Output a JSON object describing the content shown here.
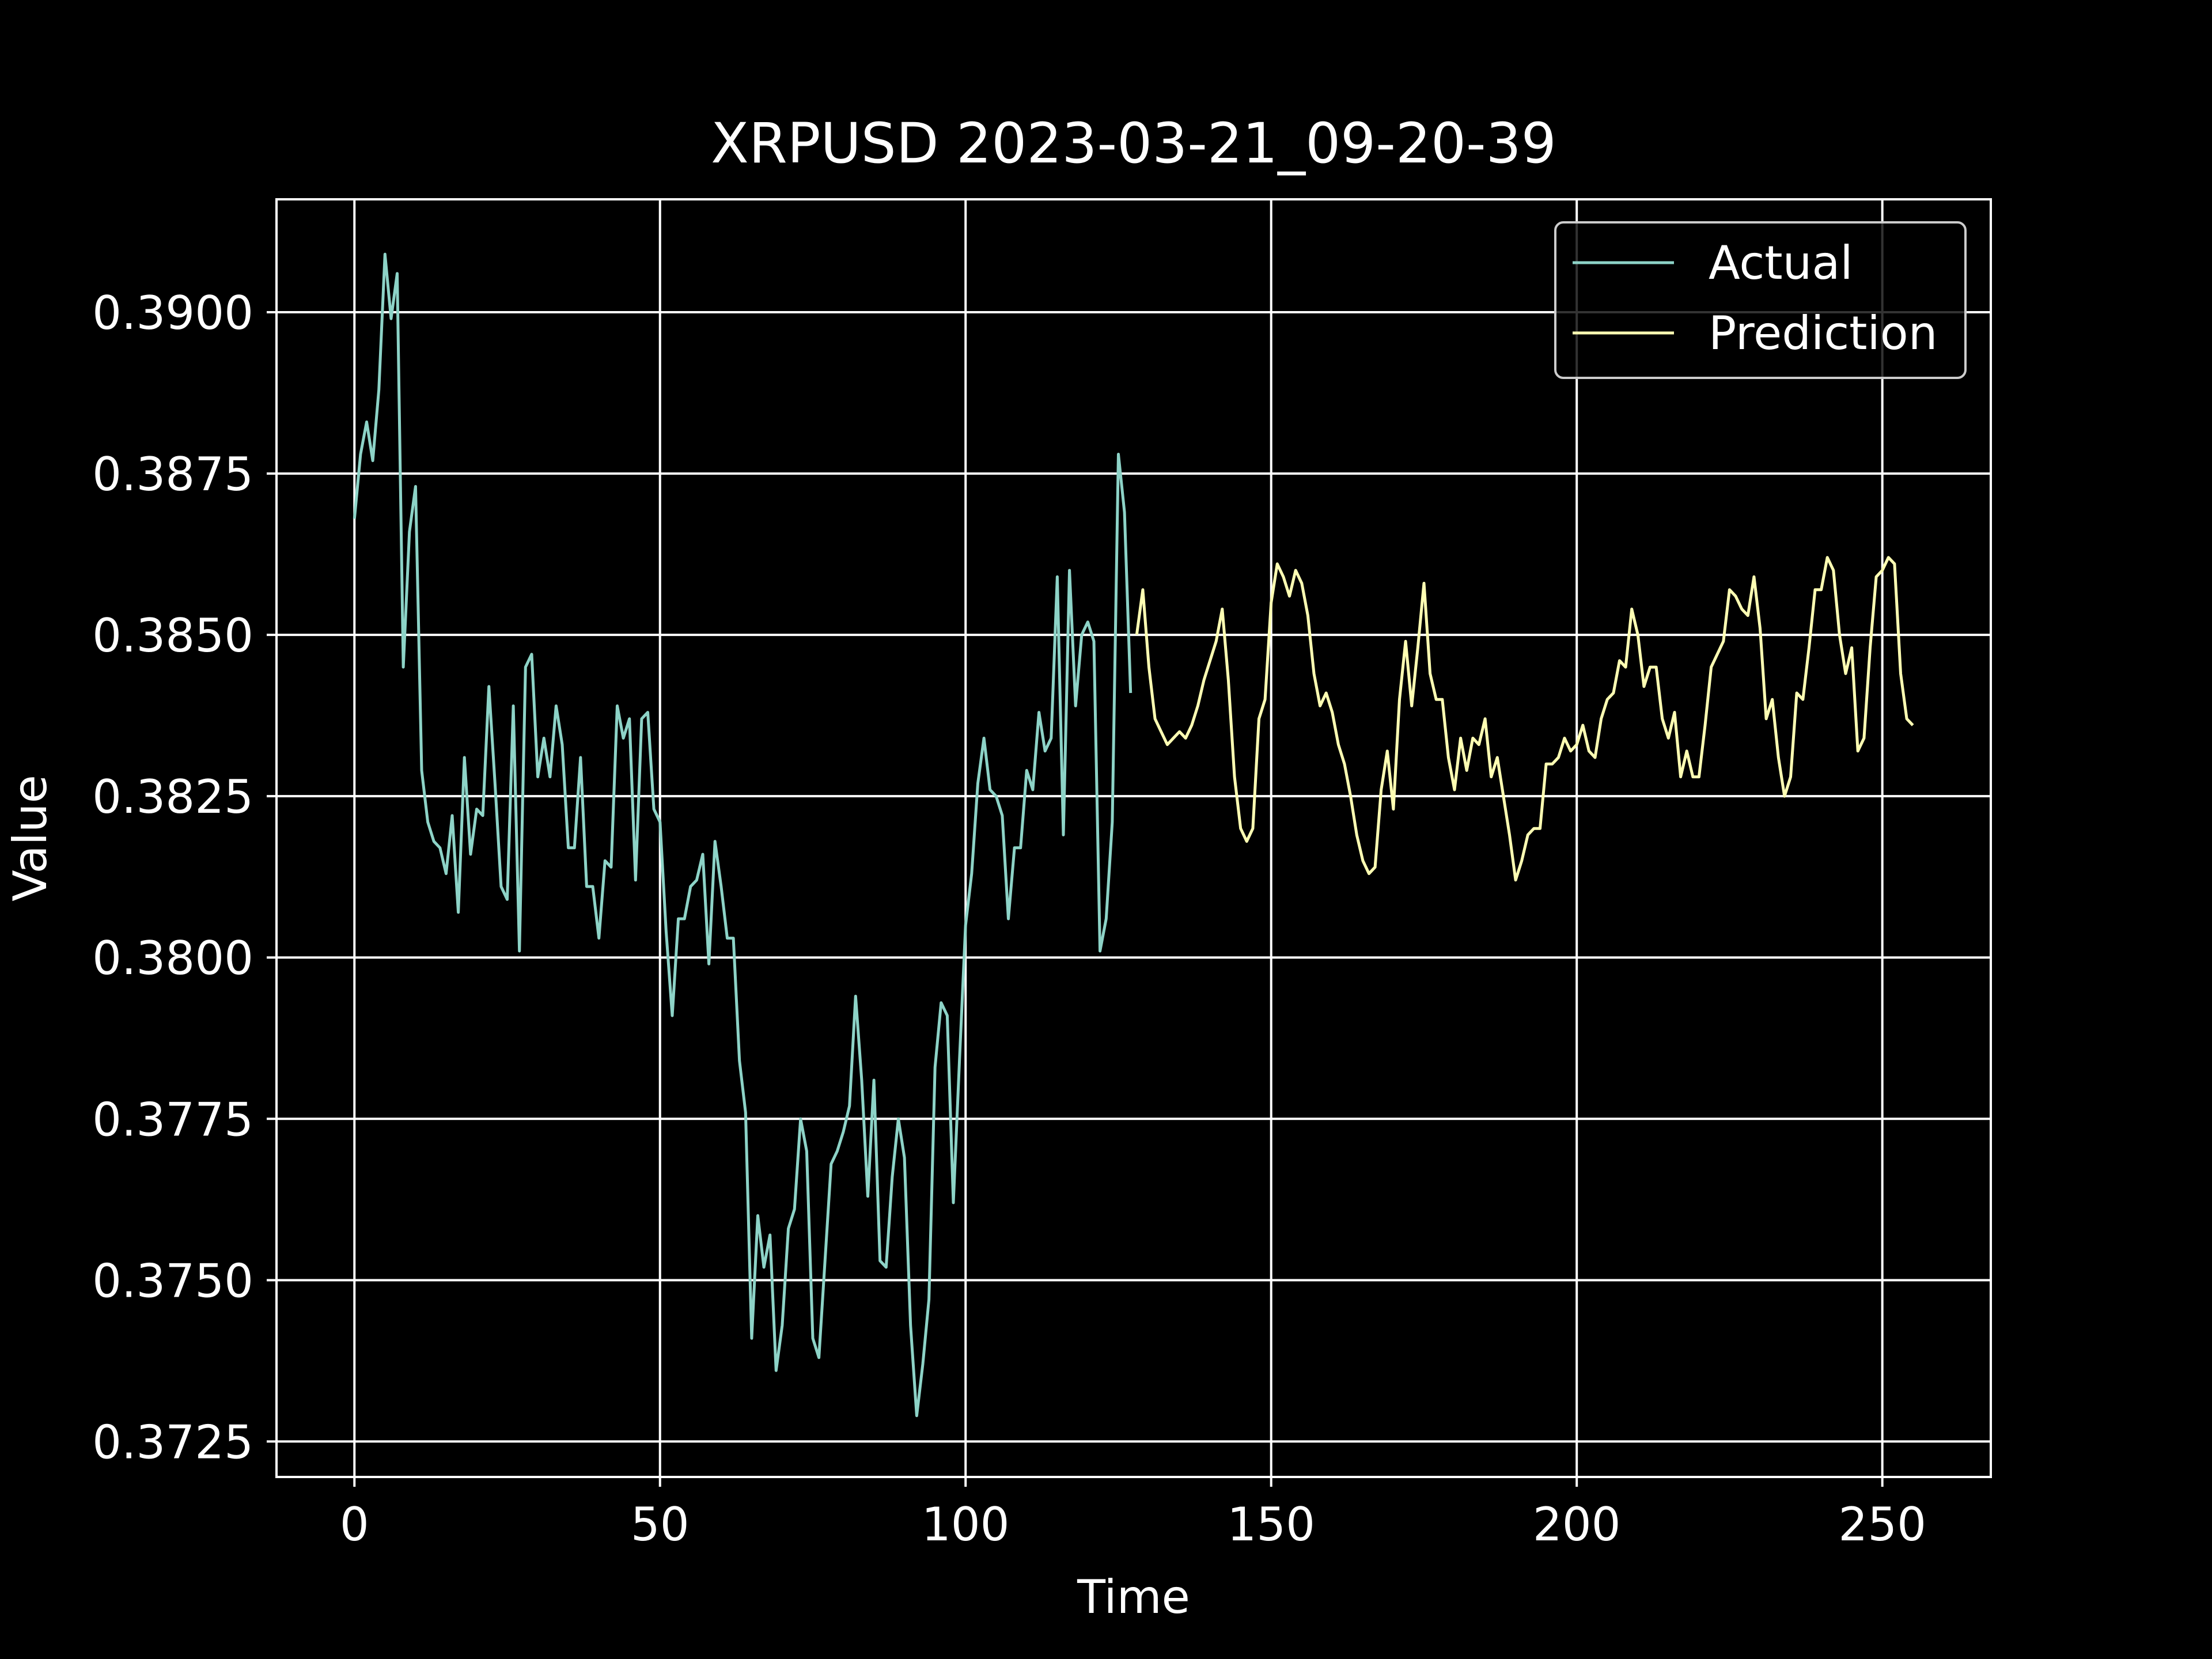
{
  "chart_data": {
    "type": "line",
    "title": "XRPUSD 2023-03-21_09-20-39",
    "xlabel": "Time",
    "ylabel": "Value",
    "xlim": [
      -12.75,
      267.75
    ],
    "ylim": [
      0.37195,
      0.39175
    ],
    "x_ticks": [
      0,
      50,
      100,
      150,
      200,
      250
    ],
    "y_ticks": [
      0.3725,
      0.375,
      0.3775,
      0.38,
      0.3825,
      0.385,
      0.3875,
      0.39
    ],
    "y_tick_decimals": 4,
    "grid": true,
    "legend_position": "top-right",
    "series": [
      {
        "name": "Actual",
        "color": "#8dd3c7",
        "x_start": 0,
        "values": [
          0.3868,
          0.3878,
          0.3883,
          0.3877,
          0.3888,
          0.3909,
          0.3899,
          0.3906,
          0.3845,
          0.3866,
          0.3873,
          0.3829,
          0.3821,
          0.3818,
          0.3817,
          0.3813,
          0.3822,
          0.3807,
          0.3831,
          0.3816,
          0.3823,
          0.3822,
          0.3842,
          0.3827,
          0.3811,
          0.3809,
          0.3839,
          0.3801,
          0.3845,
          0.3847,
          0.3828,
          0.3834,
          0.3828,
          0.3839,
          0.3833,
          0.3817,
          0.3817,
          0.3831,
          0.3811,
          0.3811,
          0.3803,
          0.3815,
          0.3814,
          0.3839,
          0.3834,
          0.3837,
          0.3812,
          0.3837,
          0.3838,
          0.3823,
          0.3821,
          0.3804,
          0.3791,
          0.3806,
          0.3806,
          0.3811,
          0.3812,
          0.3816,
          0.3799,
          0.3818,
          0.3811,
          0.3803,
          0.3803,
          0.3784,
          0.3776,
          0.3741,
          0.376,
          0.3752,
          0.3757,
          0.3736,
          0.3743,
          0.3758,
          0.3761,
          0.3775,
          0.377,
          0.3741,
          0.3738,
          0.3753,
          0.3768,
          0.377,
          0.3773,
          0.3777,
          0.3794,
          0.3781,
          0.3763,
          0.3781,
          0.3753,
          0.3752,
          0.3766,
          0.3775,
          0.3769,
          0.3743,
          0.3729,
          0.3737,
          0.3747,
          0.3783,
          0.3793,
          0.3791,
          0.3762,
          0.3784,
          0.3805,
          0.3813,
          0.3827,
          0.3834,
          0.3826,
          0.3825,
          0.3822,
          0.3806,
          0.3817,
          0.3817,
          0.3829,
          0.3826,
          0.3838,
          0.3832,
          0.3834,
          0.3859,
          0.3819,
          0.386,
          0.3839,
          0.385,
          0.3852,
          0.3849,
          0.3801,
          0.3806,
          0.3821,
          0.3878,
          0.3869,
          0.3841
        ]
      },
      {
        "name": "Prediction",
        "color": "#ffffb3",
        "x_start": 128,
        "values": [
          0.385,
          0.3857,
          0.3845,
          0.3837,
          0.3835,
          0.3833,
          0.3834,
          0.3835,
          0.3834,
          0.3836,
          0.3839,
          0.3843,
          0.3846,
          0.3849,
          0.3854,
          0.3843,
          0.3828,
          0.382,
          0.3818,
          0.382,
          0.3837,
          0.384,
          0.3855,
          0.3861,
          0.3859,
          0.3856,
          0.386,
          0.3858,
          0.3853,
          0.3844,
          0.3839,
          0.3841,
          0.3838,
          0.3833,
          0.383,
          0.3825,
          0.3819,
          0.3815,
          0.3813,
          0.3814,
          0.3826,
          0.3832,
          0.3823,
          0.384,
          0.3849,
          0.3839,
          0.3848,
          0.3858,
          0.3844,
          0.384,
          0.384,
          0.3831,
          0.3826,
          0.3834,
          0.3829,
          0.3834,
          0.3833,
          0.3837,
          0.3828,
          0.3831,
          0.3825,
          0.3819,
          0.3812,
          0.3815,
          0.3819,
          0.382,
          0.382,
          0.383,
          0.383,
          0.3831,
          0.3834,
          0.3832,
          0.3833,
          0.3836,
          0.3832,
          0.3831,
          0.3837,
          0.384,
          0.3841,
          0.3846,
          0.3845,
          0.3854,
          0.385,
          0.3842,
          0.3845,
          0.3845,
          0.3837,
          0.3834,
          0.3838,
          0.3828,
          0.3832,
          0.3828,
          0.3828,
          0.3836,
          0.3845,
          0.3847,
          0.3849,
          0.3857,
          0.3856,
          0.3854,
          0.3853,
          0.3859,
          0.3851,
          0.3837,
          0.384,
          0.3831,
          0.3825,
          0.3828,
          0.3841,
          0.384,
          0.3848,
          0.3857,
          0.3857,
          0.3862,
          0.386,
          0.385,
          0.3844,
          0.3848,
          0.3832,
          0.3834,
          0.3848,
          0.3859,
          0.386,
          0.3862,
          0.3861,
          0.3844,
          0.3837,
          0.3836
        ]
      }
    ]
  }
}
